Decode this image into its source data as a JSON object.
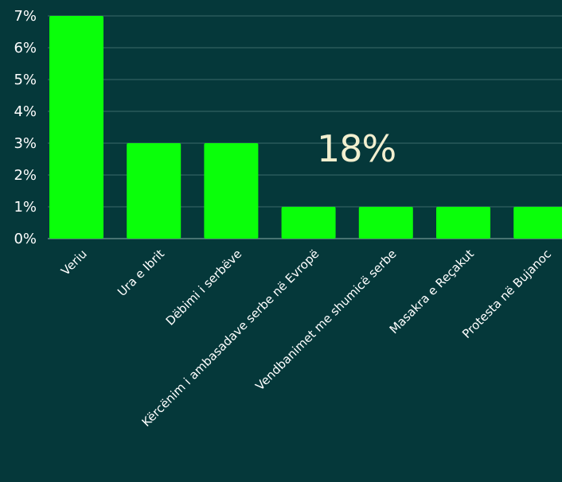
{
  "overlay": {
    "value": "18%"
  },
  "colors": {
    "background": "#05383a",
    "bar": "#0aff0a",
    "text": "#ffffff",
    "highlight_text": "#f2efcf",
    "grid": "#3c6a69"
  },
  "chart_data": {
    "type": "bar",
    "categories": [
      "Veriu",
      "Ura e Ibrit",
      "Dëbimi i serbëve",
      "Kërcënim i ambasadave serbe në Evropë",
      "Vendbanimet me shumicë serbe",
      "Masakra e Reçakut",
      "Protesta në Bujanoc"
    ],
    "values": [
      7,
      3,
      3,
      1,
      1,
      1,
      1
    ],
    "unit": "%",
    "y_ticks": [
      "0%",
      "1%",
      "2%",
      "3%",
      "4%",
      "5%",
      "6%",
      "7%"
    ],
    "ylim": [
      0,
      7
    ],
    "grid": true,
    "legend": "none",
    "title": "",
    "xlabel": "",
    "ylabel": ""
  }
}
